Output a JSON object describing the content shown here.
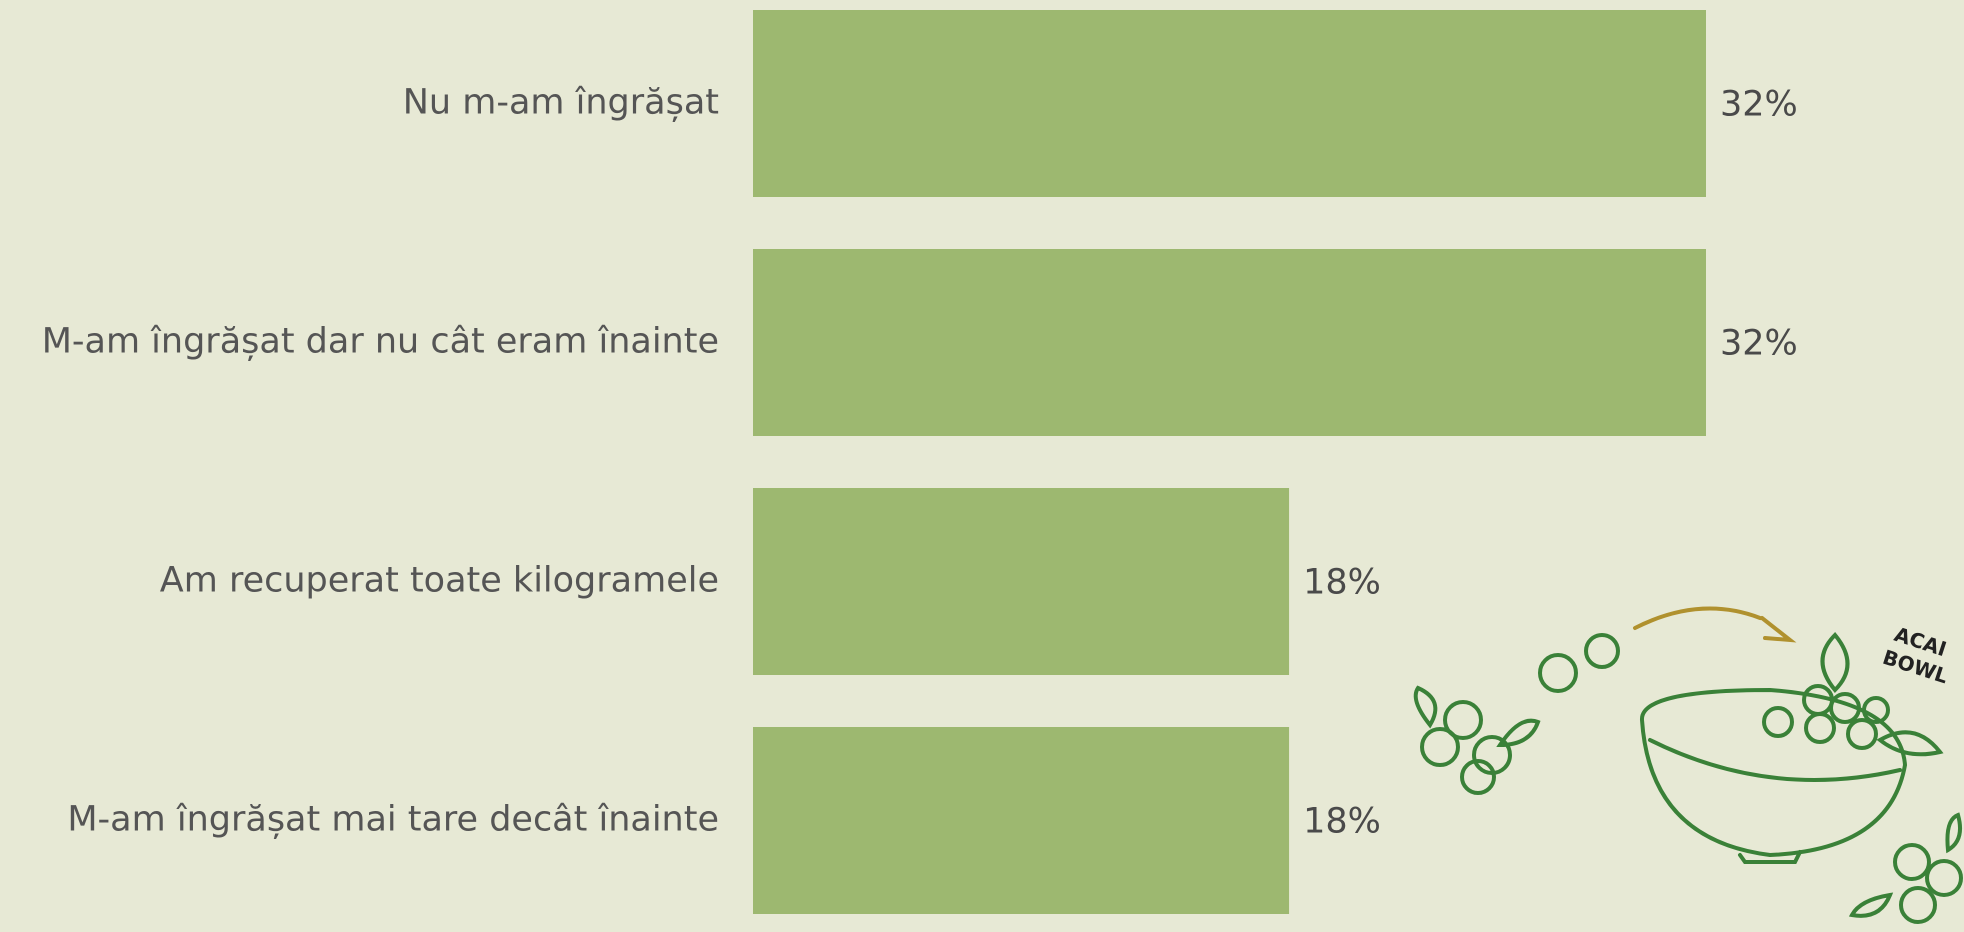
{
  "chart_data": {
    "type": "hbar",
    "categories": [
      "Nu m-am îngrășat",
      "M-am îngrășat dar nu cât eram înainte",
      "Am recuperat toate kilogramele",
      "M-am îngrășat mai tare decât înainte"
    ],
    "values": [
      32,
      32,
      18,
      18
    ],
    "value_labels": [
      "32%",
      "32%",
      "18%",
      "18%"
    ],
    "color": "#9db870",
    "illustration_text": [
      "ACAI",
      "BOWL"
    ]
  }
}
